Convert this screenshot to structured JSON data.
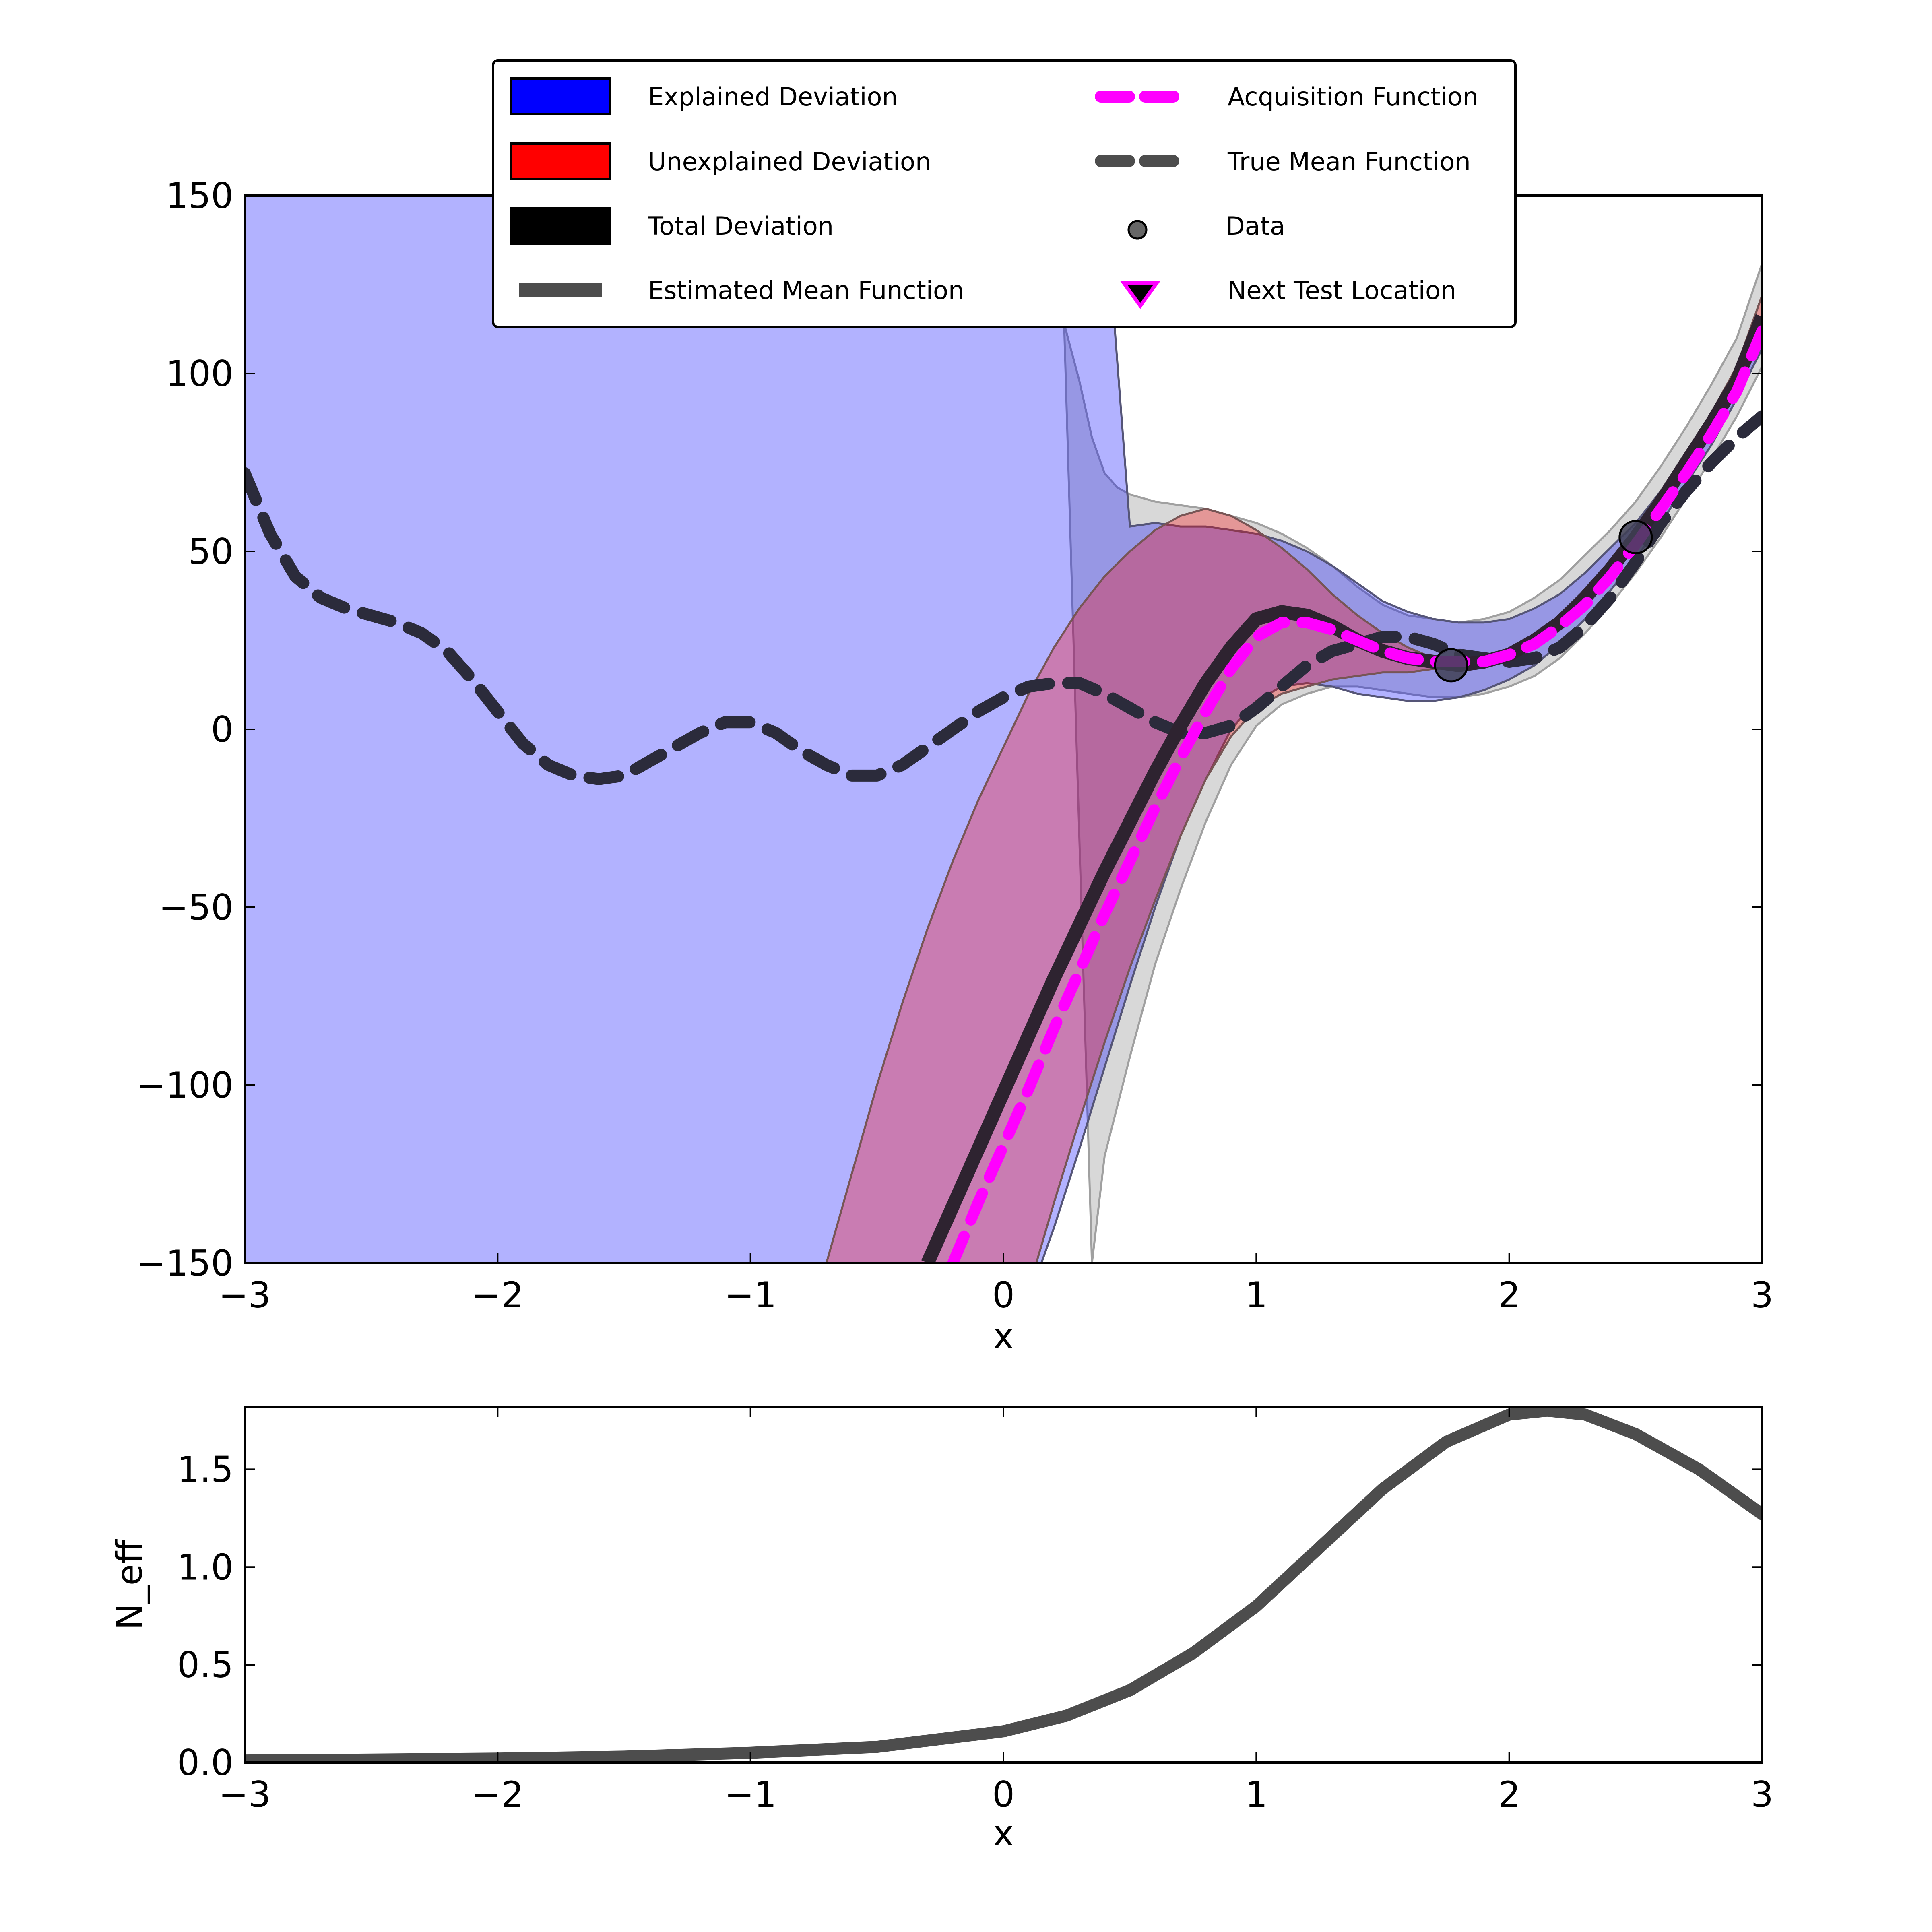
{
  "chart_data": [
    {
      "type": "line",
      "panel": "top",
      "xlabel": "x",
      "ylabel": "",
      "xlim": [
        -3,
        3
      ],
      "ylim": [
        -150,
        150
      ],
      "xticks": [
        -3,
        -2,
        -1,
        0,
        1,
        2,
        3
      ],
      "xtick_labels": [
        "−3",
        "−2",
        "−1",
        "0",
        "1",
        "2",
        "3"
      ],
      "yticks": [
        -150,
        -100,
        -50,
        0,
        50,
        100,
        150
      ],
      "ytick_labels": [
        "−150",
        "−100",
        "−50",
        "0",
        "50",
        "100",
        "150"
      ],
      "legend": {
        "placement": "upper-center",
        "columns": 2,
        "entries": [
          {
            "label": "Explained Deviation",
            "style": "patch",
            "color": "#0000ff"
          },
          {
            "label": "Unexplained Deviation",
            "style": "patch",
            "color": "#ff0000"
          },
          {
            "label": "Total Deviation",
            "style": "patch",
            "color": "#000000"
          },
          {
            "label": "Estimated Mean Function",
            "style": "line",
            "color": "#4d4d4d"
          },
          {
            "label": "Acquisition Function",
            "style": "dashed",
            "color": "#ff00ff"
          },
          {
            "label": "True Mean Function",
            "style": "dashed",
            "color": "#4d4d4d"
          },
          {
            "label": "Data",
            "style": "marker",
            "color": "#4d4d4d"
          },
          {
            "label": "Next Test Location",
            "style": "triangle",
            "color": "#000000",
            "edge_color": "#ff00ff"
          }
        ]
      },
      "colors": {
        "explained": "#b2b2fd",
        "unexplained": "#f5a5a5",
        "overlap": "#c97db2",
        "total": "#d8d8d8",
        "estimated_mean": "#2e2330",
        "acquisition": "#ff00ff",
        "true_mean": "#2b2b3b",
        "data": "#3f3f55"
      },
      "series": {
        "estimated_mean": {
          "x": [
            -0.3,
            -0.2,
            -0.1,
            0,
            0.1,
            0.2,
            0.3,
            0.4,
            0.5,
            0.6,
            0.7,
            0.8,
            0.9,
            1.0,
            1.1,
            1.2,
            1.3,
            1.4,
            1.5,
            1.6,
            1.7,
            1.8,
            1.9,
            2.0,
            2.1,
            2.2,
            2.3,
            2.4,
            2.5,
            2.6,
            2.7,
            2.8,
            2.9,
            3.0
          ],
          "y": [
            -150,
            -134,
            -118,
            -102,
            -86,
            -70,
            -55,
            -40,
            -26,
            -12,
            1,
            13,
            23,
            31,
            33,
            32,
            29,
            25,
            22,
            20,
            19,
            18,
            19,
            21,
            25,
            30,
            37,
            45,
            54,
            64,
            75,
            86,
            98,
            116
          ]
        },
        "acquisition": {
          "x": [
            -0.2,
            -0.1,
            0,
            0.1,
            0.2,
            0.3,
            0.4,
            0.5,
            0.6,
            0.7,
            0.8,
            0.9,
            1.0,
            1.1,
            1.2,
            1.3,
            1.4,
            1.5,
            1.6,
            1.7,
            1.8,
            1.9,
            2.0,
            2.1,
            2.2,
            2.3,
            2.4,
            2.5,
            2.6,
            2.7,
            2.8,
            2.9,
            3.0
          ],
          "y": [
            -150,
            -133,
            -117,
            -101,
            -84,
            -68,
            -52,
            -37,
            -22,
            -8,
            5,
            17,
            26,
            30,
            30,
            28,
            25,
            22,
            20,
            19,
            19,
            19,
            21,
            24,
            29,
            35,
            43,
            52,
            62,
            72,
            83,
            95,
            112
          ]
        },
        "true_mean": {
          "x": [
            -3.0,
            -2.9,
            -2.8,
            -2.7,
            -2.6,
            -2.5,
            -2.4,
            -2.3,
            -2.2,
            -2.1,
            -2.0,
            -1.9,
            -1.8,
            -1.7,
            -1.6,
            -1.5,
            -1.4,
            -1.3,
            -1.2,
            -1.1,
            -1.0,
            -0.9,
            -0.8,
            -0.7,
            -0.6,
            -0.5,
            -0.4,
            -0.3,
            -0.2,
            -0.1,
            0.0,
            0.1,
            0.2,
            0.3,
            0.4,
            0.5,
            0.6,
            0.7,
            0.8,
            0.9,
            1.0,
            1.1,
            1.2,
            1.3,
            1.4,
            1.5,
            1.6,
            1.7,
            1.8,
            1.9,
            2.0,
            2.1,
            2.2,
            2.3,
            2.4,
            2.5,
            2.6,
            2.7,
            2.8,
            2.9,
            3.0
          ],
          "y": [
            72,
            55,
            43,
            37,
            34,
            32,
            30,
            27,
            22,
            14,
            5,
            -4,
            -10,
            -13,
            -14,
            -13,
            -9,
            -5,
            -1,
            2,
            2,
            -1,
            -6,
            -10,
            -13,
            -13,
            -10,
            -5,
            0,
            5,
            9,
            12,
            13,
            13,
            10,
            6,
            2,
            -1,
            -1,
            1,
            6,
            12,
            18,
            22,
            24,
            26,
            26,
            24,
            21,
            20,
            19,
            20,
            23,
            29,
            37,
            47,
            58,
            67,
            75,
            82,
            88
          ]
        },
        "explained_upper": {
          "x": [
            -3.0,
            0.0,
            0.2,
            0.4,
            0.5,
            0.6,
            0.7,
            0.8,
            0.9,
            1.0,
            1.1,
            1.2,
            1.3,
            1.4,
            1.5,
            1.6,
            1.7,
            1.8,
            1.9,
            2.0,
            2.1,
            2.2,
            2.3,
            2.4,
            2.5,
            2.6,
            2.7,
            2.8,
            2.9,
            3.0
          ],
          "y": [
            150,
            150,
            150,
            150,
            57,
            58,
            57,
            57,
            56,
            55,
            53,
            50,
            46,
            41,
            36,
            33,
            31,
            30,
            30,
            31,
            34,
            38,
            44,
            51,
            58,
            67,
            77,
            88,
            100,
            116
          ]
        },
        "explained_lower": {
          "x": [
            -3.0,
            0.0,
            0.1,
            0.15,
            0.2,
            0.3,
            0.4,
            0.5,
            0.6,
            0.7,
            0.8,
            0.9,
            1.0,
            1.1,
            1.2,
            1.3,
            1.4,
            1.5,
            1.6,
            1.7,
            1.8,
            1.9,
            2.0,
            2.1,
            2.2,
            2.3,
            2.4,
            2.5,
            2.6,
            2.7,
            2.8,
            2.9,
            3.0
          ],
          "y": [
            -150,
            -150,
            -150,
            -150,
            -140,
            -118,
            -95,
            -72,
            -50,
            -30,
            -14,
            0,
            8,
            12,
            13,
            12,
            10,
            9,
            8,
            8,
            9,
            11,
            14,
            18,
            24,
            31,
            39,
            48,
            58,
            69,
            80,
            93,
            107
          ]
        },
        "unexplained_upper": {
          "x": [
            -0.7,
            -0.6,
            -0.5,
            -0.4,
            -0.3,
            -0.2,
            -0.1,
            0.0,
            0.1,
            0.2,
            0.3,
            0.4,
            0.5,
            0.6,
            0.7,
            0.8,
            0.9,
            1.0,
            1.1,
            1.2,
            1.3,
            1.4,
            1.5,
            1.6,
            1.7,
            1.8,
            1.9,
            2.0,
            2.1,
            2.2,
            2.3,
            2.4,
            2.5,
            2.6,
            2.7,
            2.8,
            2.9,
            3.0
          ],
          "y": [
            -150,
            -125,
            -100,
            -77,
            -56,
            -37,
            -20,
            -5,
            10,
            23,
            34,
            43,
            50,
            56,
            60,
            62,
            60,
            56,
            51,
            45,
            38,
            32,
            27,
            23,
            20,
            19,
            20,
            22,
            26,
            32,
            39,
            47,
            56,
            66,
            77,
            89,
            102,
            122
          ]
        },
        "unexplained_lower": {
          "x": [
            0.13,
            0.2,
            0.3,
            0.4,
            0.5,
            0.6,
            0.7,
            0.8,
            0.9,
            1.0,
            1.1,
            1.2,
            1.3,
            1.4,
            1.5,
            1.6,
            1.7,
            1.8,
            1.9,
            2.0,
            2.1,
            2.2,
            2.3,
            2.4,
            2.5,
            2.6,
            2.7,
            2.8,
            2.9,
            3.0
          ],
          "y": [
            -150,
            -133,
            -110,
            -88,
            -67,
            -48,
            -30,
            -14,
            -2,
            6,
            10,
            12,
            14,
            15,
            16,
            16,
            17,
            17,
            18,
            20,
            23,
            28,
            35,
            43,
            52,
            61,
            72,
            83,
            95,
            110
          ]
        },
        "total_upper": {
          "x": [
            0.24,
            0.3,
            0.35,
            0.4,
            0.45,
            0.5,
            0.6,
            0.7,
            0.8,
            0.9,
            1.0,
            1.1,
            1.2,
            1.3,
            1.4,
            1.5,
            1.6,
            1.7,
            1.8,
            1.9,
            2.0,
            2.1,
            2.2,
            2.3,
            2.4,
            2.5,
            2.6,
            2.7,
            2.8,
            2.9,
            3.0
          ],
          "y": [
            114,
            98,
            82,
            72,
            68,
            66,
            64,
            63,
            62,
            60,
            58,
            55,
            51,
            46,
            40,
            35,
            32,
            31,
            30,
            31,
            33,
            37,
            42,
            49,
            56,
            64,
            74,
            85,
            97,
            110,
            131
          ]
        },
        "total_lower": {
          "x": [
            0.35,
            0.4,
            0.5,
            0.6,
            0.7,
            0.8,
            0.9,
            1.0,
            1.1,
            1.2,
            1.3,
            1.4,
            1.5,
            1.6,
            1.7,
            1.8,
            1.9,
            2.0,
            2.1,
            2.2,
            2.3,
            2.4,
            2.5,
            2.6,
            2.7,
            2.8,
            2.9,
            3.0
          ],
          "y": [
            -150,
            -120,
            -92,
            -66,
            -45,
            -26,
            -10,
            1,
            7,
            10,
            12,
            12,
            11,
            10,
            9,
            9,
            10,
            12,
            15,
            20,
            27,
            35,
            44,
            54,
            65,
            76,
            88,
            102
          ]
        },
        "data": {
          "x": [
            1.77,
            2.5
          ],
          "y": [
            18,
            54
          ]
        }
      }
    },
    {
      "type": "line",
      "panel": "bottom",
      "xlabel": "x",
      "ylabel": "N_eff",
      "xlim": [
        -3,
        3
      ],
      "ylim": [
        0,
        1.82
      ],
      "xticks": [
        -3,
        -2,
        -1,
        0,
        1,
        2,
        3
      ],
      "xtick_labels": [
        "−3",
        "−2",
        "−1",
        "0",
        "1",
        "2",
        "3"
      ],
      "yticks": [
        0,
        0.5,
        1.0,
        1.5
      ],
      "ytick_labels": [
        "0.0",
        "0.5",
        "1.0",
        "1.5"
      ],
      "line_color": "#4d4d4d",
      "series": [
        {
          "x": [
            -3.0,
            -2.5,
            -2.0,
            -1.5,
            -1.0,
            -0.5,
            0.0,
            0.25,
            0.5,
            0.75,
            1.0,
            1.25,
            1.5,
            1.75,
            2.0,
            2.15,
            2.3,
            2.5,
            2.75,
            3.0
          ],
          "y": [
            0.01,
            0.015,
            0.02,
            0.03,
            0.05,
            0.08,
            0.16,
            0.24,
            0.37,
            0.56,
            0.8,
            1.1,
            1.4,
            1.64,
            1.78,
            1.8,
            1.78,
            1.68,
            1.5,
            1.27
          ]
        }
      ]
    }
  ]
}
